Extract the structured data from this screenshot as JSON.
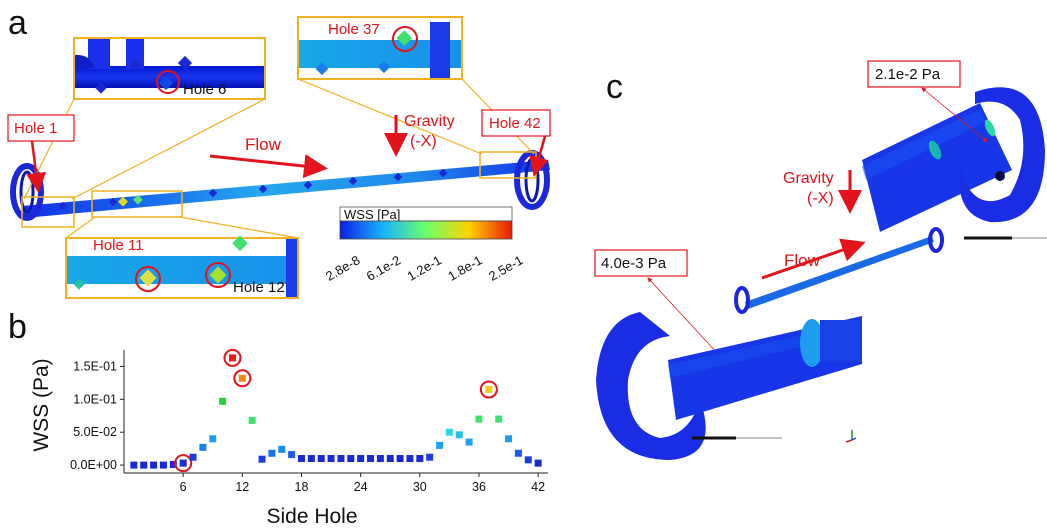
{
  "panels": {
    "a": "a",
    "b": "b",
    "c": "c"
  },
  "panel_a": {
    "hole_labels": {
      "hole1": "Hole 1",
      "hole6": "Hole 6",
      "hole37": "Hole 37",
      "hole42": "Hole 42",
      "hole11": "Hole 11",
      "hole12": "Hole 12"
    },
    "flow_label": "Flow",
    "gravity_label": "Gravity",
    "gravity_axis": "(-X)",
    "colorbar": {
      "title": "WSS [Pa]",
      "ticks": [
        "2.8e-8",
        "6.1e-2",
        "1.2e-1",
        "1.8e-1",
        "2.5e-1"
      ],
      "colors": [
        "#0a1ee6",
        "#18b4ff",
        "#6cff6a",
        "#ffd300",
        "#e8180c"
      ]
    }
  },
  "panel_c": {
    "value_top": "2.1e-2 Pa",
    "value_bottom": "4.0e-3 Pa",
    "gravity_label": "Gravity",
    "gravity_axis": "(-X)",
    "flow_label": "Flow"
  },
  "chart_data": {
    "type": "scatter",
    "xlabel": "Side Hole",
    "ylabel": "WSS (Pa)",
    "xlim": [
      0,
      43
    ],
    "ylim": [
      -0.012,
      0.175
    ],
    "xticks": [
      6,
      12,
      18,
      24,
      30,
      36,
      42
    ],
    "yticks": [
      0.0,
      0.05,
      0.1,
      0.15
    ],
    "ytick_labels": [
      "0.0E+00",
      "5.0E-02",
      "1.0E-01",
      "1.5E-01"
    ],
    "x": [
      1,
      2,
      3,
      4,
      5,
      6,
      7,
      8,
      9,
      10,
      11,
      12,
      13,
      14,
      15,
      16,
      17,
      18,
      19,
      20,
      21,
      22,
      23,
      24,
      25,
      26,
      27,
      28,
      29,
      30,
      31,
      32,
      33,
      34,
      35,
      36,
      37,
      38,
      39,
      40,
      41,
      42
    ],
    "y": [
      0.0,
      0.0,
      0.0,
      0.0,
      0.001,
      0.003,
      0.012,
      0.027,
      0.04,
      0.097,
      0.163,
      0.132,
      0.068,
      0.009,
      0.018,
      0.024,
      0.016,
      0.01,
      0.01,
      0.01,
      0.01,
      0.01,
      0.01,
      0.01,
      0.01,
      0.01,
      0.01,
      0.01,
      0.01,
      0.01,
      0.012,
      0.03,
      0.05,
      0.046,
      0.035,
      0.07,
      0.115,
      0.07,
      0.04,
      0.018,
      0.008,
      0.003
    ],
    "point_colors": [
      "#1a2ad2",
      "#1a2ad2",
      "#1a2ad2",
      "#1a2ad2",
      "#1a2ad2",
      "#1a2ad2",
      "#1a3ee0",
      "#1a7de8",
      "#1f9df0",
      "#28d23a",
      "#e81a12",
      "#f08a10",
      "#3ee06e",
      "#1a3ee0",
      "#1a70e8",
      "#1a8ae8",
      "#1a5ee6",
      "#1a2ad2",
      "#1a2ad2",
      "#1a2ad2",
      "#1a2ad2",
      "#1a2ad2",
      "#1a2ad2",
      "#1a2ad2",
      "#1a2ad2",
      "#1a2ad2",
      "#1a2ad2",
      "#1a2ad2",
      "#1a2ad2",
      "#1a2ad2",
      "#1a3ee0",
      "#1fa0f2",
      "#2ad8e8",
      "#22c0f0",
      "#1fa0f2",
      "#3ee06e",
      "#f0d010",
      "#3ee06e",
      "#1f9df0",
      "#1a5ee6",
      "#1a3ee0",
      "#1a2ad2"
    ],
    "highlighted": [
      6,
      11,
      12,
      37
    ]
  }
}
